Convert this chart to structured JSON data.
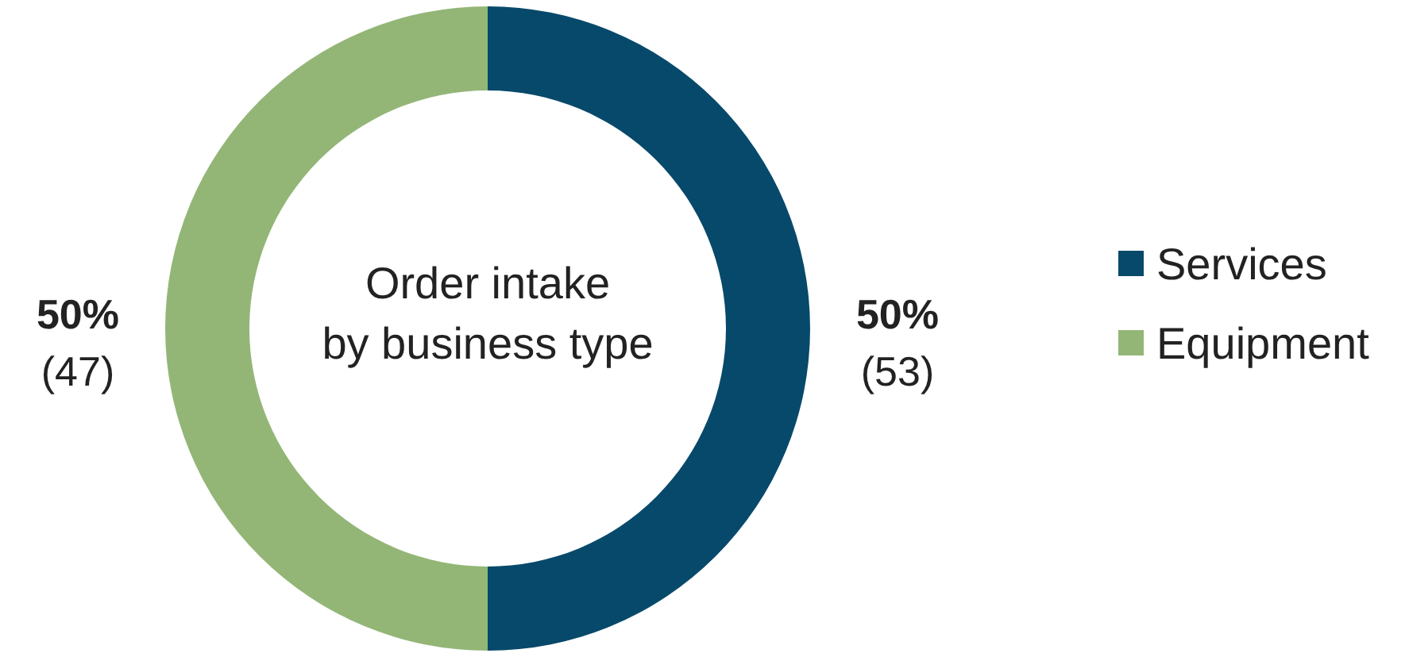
{
  "chart_data": {
    "type": "donut",
    "title": "Order intake\nby business type",
    "categories": [
      "Services",
      "Equipment"
    ],
    "values": [
      50,
      50
    ],
    "colors": [
      "#07496a",
      "#93b677"
    ],
    "value_labels": [
      "50%\n(53)",
      "50%\n(47)"
    ],
    "legend": "right"
  }
}
